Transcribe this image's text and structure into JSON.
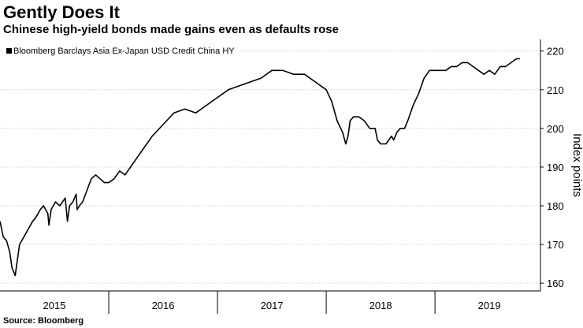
{
  "title": "Gently Does It",
  "subtitle": "Chinese high-yield bonds made gains even as defaults rose",
  "source": "Source: Bloomberg",
  "chart_data": {
    "type": "line",
    "series": [
      {
        "name": "Bloomberg Barclays Asia Ex-Japan USD Credit China HY",
        "color": "#000000",
        "x": [
          2015.0,
          2015.03,
          2015.06,
          2015.09,
          2015.11,
          2015.14,
          2015.18,
          2015.22,
          2015.26,
          2015.3,
          2015.33,
          2015.37,
          2015.4,
          2015.44,
          2015.45,
          2015.47,
          2015.51,
          2015.55,
          2015.6,
          2015.62,
          2015.64,
          2015.67,
          2015.7,
          2015.71,
          2015.73,
          2015.76,
          2015.8,
          2015.84,
          2015.88,
          2015.92,
          2015.96,
          2016.0,
          2016.05,
          2016.1,
          2016.15,
          2016.2,
          2016.25,
          2016.3,
          2016.35,
          2016.4,
          2016.5,
          2016.6,
          2016.7,
          2016.8,
          2016.9,
          2017.0,
          2017.1,
          2017.2,
          2017.3,
          2017.4,
          2017.5,
          2017.6,
          2017.7,
          2017.8,
          2017.9,
          2018.0,
          2018.05,
          2018.1,
          2018.15,
          2018.18,
          2018.2,
          2018.22,
          2018.25,
          2018.3,
          2018.35,
          2018.4,
          2018.45,
          2018.47,
          2018.5,
          2018.55,
          2018.6,
          2018.62,
          2018.65,
          2018.68,
          2018.72,
          2018.75,
          2018.8,
          2018.85,
          2018.9,
          2018.95,
          2019.0,
          2019.05,
          2019.1,
          2019.15,
          2019.2,
          2019.25,
          2019.3,
          2019.35,
          2019.4,
          2019.45,
          2019.5,
          2019.55,
          2019.6,
          2019.65,
          2019.7,
          2019.75,
          2019.78
        ],
        "y": [
          176,
          172,
          171,
          168,
          164,
          162,
          170,
          172,
          174,
          176,
          177,
          179,
          180,
          178,
          175,
          179,
          181,
          180,
          182,
          176,
          180,
          181,
          183,
          179,
          180,
          181,
          184,
          187,
          188,
          187,
          186,
          186,
          187,
          189,
          188,
          190,
          192,
          194,
          196,
          198,
          201,
          204,
          205,
          204,
          206,
          208,
          210,
          211,
          212,
          213,
          215,
          215,
          214,
          214,
          212,
          210,
          207,
          202,
          199,
          196,
          198,
          202,
          203,
          203,
          202,
          200,
          200,
          197,
          196,
          196,
          198,
          197,
          199,
          200,
          200,
          202,
          206,
          209,
          213,
          215,
          215,
          215,
          215,
          216,
          216,
          217,
          217,
          216,
          215,
          214,
          215,
          214,
          216,
          216,
          217,
          218,
          218
        ]
      }
    ],
    "ylabel": "Index points",
    "ylim": [
      158,
      223
    ],
    "yticks": [
      160,
      170,
      180,
      190,
      200,
      210,
      220
    ],
    "xlim": [
      2015.0,
      2019.97
    ],
    "xtick_labels": [
      "2015",
      "2016",
      "2017",
      "2018",
      "2019"
    ],
    "xtick_centers": [
      2015.5,
      2016.5,
      2017.5,
      2018.5,
      2019.5
    ],
    "xtick_boundaries": [
      2016.0,
      2017.0,
      2018.0,
      2019.0
    ],
    "grid": "horizontal",
    "y_axis_position": "right",
    "legend_position": "top-left"
  }
}
